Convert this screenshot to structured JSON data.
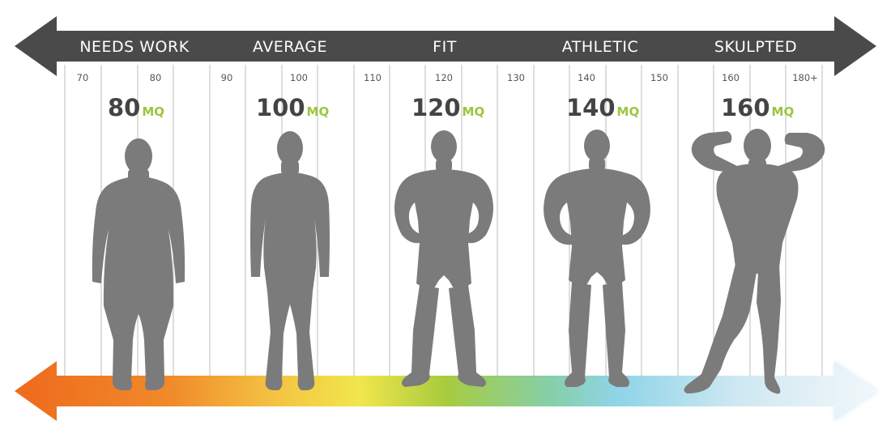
{
  "categories": [
    "NEEDS WORK",
    "AVERAGE",
    "FIT",
    "ATHLETIC",
    "SKULPTED"
  ],
  "ticks": [
    "70",
    "80",
    "90",
    "100",
    "110",
    "120",
    "130",
    "140",
    "150",
    "160",
    "180+"
  ],
  "figures": [
    {
      "score": "80",
      "unit": "MQ",
      "build": "heavy"
    },
    {
      "score": "100",
      "unit": "MQ",
      "build": "average"
    },
    {
      "score": "120",
      "unit": "MQ",
      "build": "fit"
    },
    {
      "score": "140",
      "unit": "MQ",
      "build": "athletic"
    },
    {
      "score": "160",
      "unit": "MQ",
      "build": "flexing"
    }
  ],
  "colors": {
    "top_arrow": "#4a4a4a",
    "figure": "#7b7b7b",
    "unit": "#9bc53d",
    "gradient": [
      "#ee6d1e",
      "#f3a53a",
      "#f2e44a",
      "#a4c93c",
      "#8dd4e6",
      "#eef5f9"
    ]
  }
}
